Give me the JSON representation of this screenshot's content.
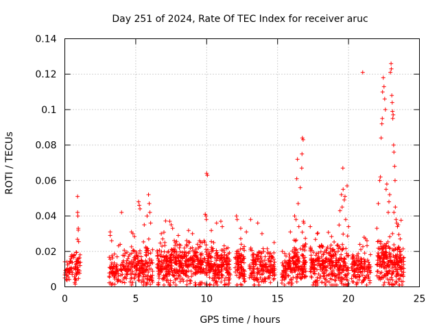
{
  "chart_data": {
    "type": "scatter",
    "title": "Day 251 of 2024, Rate Of TEC Index for receiver aruc",
    "xlabel": "GPS time / hours",
    "ylabel": "ROTI / TECUs",
    "xlim": [
      0,
      25
    ],
    "ylim": [
      0,
      0.14
    ],
    "xticks": [
      0,
      5,
      10,
      15,
      20,
      25
    ],
    "yticks": [
      0,
      0.02,
      0.04,
      0.06,
      0.08,
      0.1,
      0.12,
      0.14
    ],
    "grid": true,
    "marker": "+",
    "color": "#ff0000",
    "series": [
      {
        "name": "ROTI",
        "clusters": [
          {
            "start": 0.0,
            "end": 0.4,
            "median": 0.009,
            "spread": 0.004,
            "count": 30
          },
          {
            "start": 0.4,
            "end": 1.1,
            "median": 0.01,
            "spread": 0.006,
            "count": 60
          },
          {
            "start": 3.1,
            "end": 3.8,
            "median": 0.009,
            "spread": 0.006,
            "count": 60
          },
          {
            "start": 3.9,
            "end": 4.6,
            "median": 0.01,
            "spread": 0.006,
            "count": 50
          },
          {
            "start": 4.6,
            "end": 5.3,
            "median": 0.011,
            "spread": 0.007,
            "count": 70
          },
          {
            "start": 5.3,
            "end": 6.2,
            "median": 0.01,
            "spread": 0.007,
            "count": 90
          },
          {
            "start": 6.5,
            "end": 7.6,
            "median": 0.012,
            "spread": 0.008,
            "count": 140
          },
          {
            "start": 7.6,
            "end": 9.0,
            "median": 0.012,
            "spread": 0.008,
            "count": 170
          },
          {
            "start": 9.0,
            "end": 10.4,
            "median": 0.012,
            "spread": 0.008,
            "count": 170
          },
          {
            "start": 10.4,
            "end": 11.7,
            "median": 0.011,
            "spread": 0.008,
            "count": 150
          },
          {
            "start": 12.0,
            "end": 12.7,
            "median": 0.012,
            "spread": 0.008,
            "count": 90
          },
          {
            "start": 13.0,
            "end": 14.8,
            "median": 0.01,
            "spread": 0.007,
            "count": 180
          },
          {
            "start": 15.3,
            "end": 16.0,
            "median": 0.01,
            "spread": 0.006,
            "count": 70
          },
          {
            "start": 16.0,
            "end": 17.0,
            "median": 0.013,
            "spread": 0.008,
            "count": 130
          },
          {
            "start": 17.3,
            "end": 18.6,
            "median": 0.012,
            "spread": 0.008,
            "count": 150
          },
          {
            "start": 18.6,
            "end": 20.0,
            "median": 0.012,
            "spread": 0.009,
            "count": 170
          },
          {
            "start": 20.2,
            "end": 21.6,
            "median": 0.01,
            "spread": 0.006,
            "count": 130
          },
          {
            "start": 22.0,
            "end": 23.0,
            "median": 0.013,
            "spread": 0.009,
            "count": 130
          },
          {
            "start": 23.0,
            "end": 23.9,
            "median": 0.011,
            "spread": 0.008,
            "count": 110
          }
        ],
        "outliers": [
          [
            0.9,
            0.051
          ],
          [
            0.9,
            0.042
          ],
          [
            0.92,
            0.04
          ],
          [
            0.95,
            0.033
          ],
          [
            0.95,
            0.032
          ],
          [
            3.2,
            0.031
          ],
          [
            3.2,
            0.029
          ],
          [
            3.3,
            0.026
          ],
          [
            3.9,
            0.024
          ],
          [
            4.0,
            0.042
          ],
          [
            4.7,
            0.031
          ],
          [
            4.8,
            0.03
          ],
          [
            5.2,
            0.048
          ],
          [
            5.25,
            0.046
          ],
          [
            5.3,
            0.044
          ],
          [
            5.6,
            0.035
          ],
          [
            5.8,
            0.04
          ],
          [
            5.9,
            0.052
          ],
          [
            5.95,
            0.047
          ],
          [
            6.0,
            0.042
          ],
          [
            6.05,
            0.036
          ],
          [
            6.8,
            0.03
          ],
          [
            6.9,
            0.027
          ],
          [
            7.4,
            0.037
          ],
          [
            7.5,
            0.035
          ],
          [
            7.6,
            0.033
          ],
          [
            8.0,
            0.029
          ],
          [
            9.0,
            0.03
          ],
          [
            9.5,
            0.026
          ],
          [
            9.9,
            0.041
          ],
          [
            9.95,
            0.04
          ],
          [
            9.98,
            0.038
          ],
          [
            10.0,
            0.064
          ],
          [
            10.05,
            0.063
          ],
          [
            10.7,
            0.036
          ],
          [
            11.0,
            0.037
          ],
          [
            11.1,
            0.034
          ],
          [
            12.1,
            0.04
          ],
          [
            12.15,
            0.038
          ],
          [
            12.4,
            0.033
          ],
          [
            12.8,
            0.031
          ],
          [
            13.1,
            0.038
          ],
          [
            13.6,
            0.036
          ],
          [
            13.9,
            0.03
          ],
          [
            15.9,
            0.031
          ],
          [
            16.2,
            0.04
          ],
          [
            16.3,
            0.038
          ],
          [
            16.35,
            0.061
          ],
          [
            16.4,
            0.072
          ],
          [
            16.45,
            0.047
          ],
          [
            16.5,
            0.034
          ],
          [
            16.6,
            0.056
          ],
          [
            16.7,
            0.067
          ],
          [
            16.72,
            0.075
          ],
          [
            16.75,
            0.084
          ],
          [
            16.8,
            0.083
          ],
          [
            16.82,
            0.037
          ],
          [
            16.85,
            0.036
          ],
          [
            17.3,
            0.034
          ],
          [
            17.8,
            0.03
          ],
          [
            19.4,
            0.043
          ],
          [
            19.5,
            0.052
          ],
          [
            19.55,
            0.045
          ],
          [
            19.6,
            0.067
          ],
          [
            19.62,
            0.055
          ],
          [
            19.7,
            0.049
          ],
          [
            19.75,
            0.051
          ],
          [
            19.8,
            0.038
          ],
          [
            19.9,
            0.057
          ],
          [
            20.0,
            0.034
          ],
          [
            20.8,
            0.024
          ],
          [
            21.0,
            0.121
          ],
          [
            21.1,
            0.028
          ],
          [
            21.3,
            0.026
          ],
          [
            22.0,
            0.033
          ],
          [
            22.1,
            0.047
          ],
          [
            22.2,
            0.06
          ],
          [
            22.25,
            0.062
          ],
          [
            22.3,
            0.084
          ],
          [
            22.35,
            0.092
          ],
          [
            22.38,
            0.095
          ],
          [
            22.4,
            0.11
          ],
          [
            22.45,
            0.118
          ],
          [
            22.5,
            0.113
          ],
          [
            22.55,
            0.106
          ],
          [
            22.6,
            0.1
          ],
          [
            22.65,
            0.055
          ],
          [
            22.7,
            0.058
          ],
          [
            22.8,
            0.042
          ],
          [
            22.85,
            0.048
          ],
          [
            22.9,
            0.052
          ],
          [
            22.95,
            0.121
          ],
          [
            23.0,
            0.126
          ],
          [
            23.02,
            0.123
          ],
          [
            23.05,
            0.108
          ],
          [
            23.08,
            0.104
          ],
          [
            23.1,
            0.099
          ],
          [
            23.12,
            0.095
          ],
          [
            23.15,
            0.097
          ],
          [
            23.18,
            0.08
          ],
          [
            23.2,
            0.076
          ],
          [
            23.25,
            0.068
          ],
          [
            23.28,
            0.06
          ],
          [
            23.3,
            0.045
          ],
          [
            23.35,
            0.038
          ],
          [
            23.4,
            0.036
          ],
          [
            23.45,
            0.034
          ],
          [
            23.5,
            0.035
          ],
          [
            23.2,
            0.042
          ],
          [
            23.1,
            0.03
          ]
        ]
      }
    ]
  }
}
